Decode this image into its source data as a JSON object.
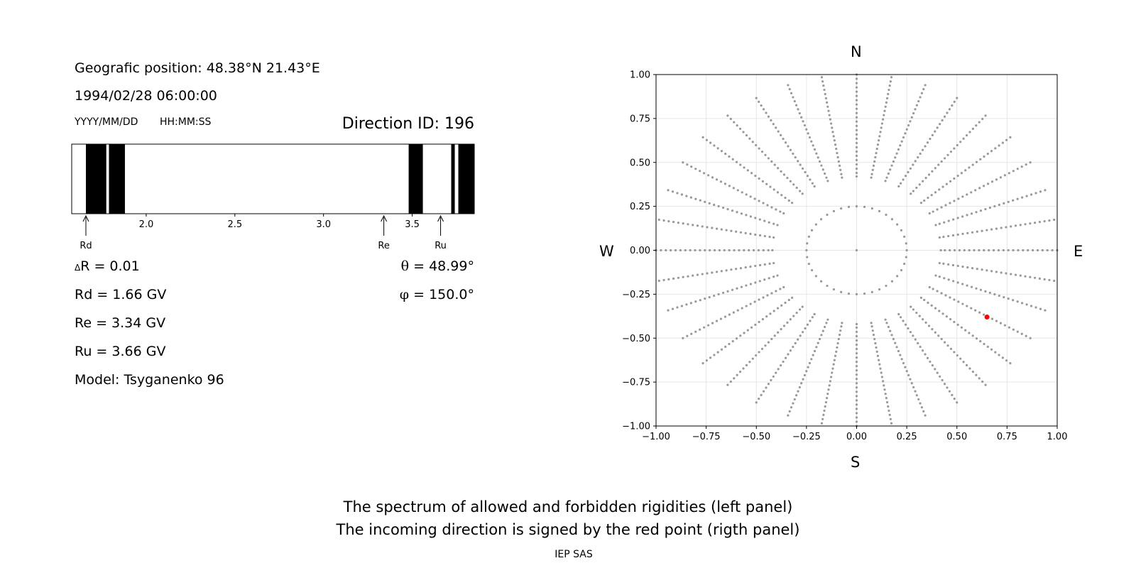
{
  "header": {
    "geo_position": "Geografic position: 48.38°N 21.43°E",
    "datetime": "1994/02/28 06:00:00",
    "date_format": "YYYY/MM/DD",
    "time_format": "HH:MM:SS",
    "direction_id": "Direction ID: 196"
  },
  "values": {
    "delta_r_symbol": "Δ",
    "delta_r": "R = 0.01",
    "rd": "Rd = 1.66 GV",
    "re": "Re = 3.34 GV",
    "ru": "Ru = 3.66 GV",
    "model": "Model: Tsyganenko 96",
    "theta_symbol": "θ",
    "theta": " = 48.99°",
    "phi_symbol": "φ",
    "phi": " = 150.0°"
  },
  "compass": {
    "n": "N",
    "s": "S",
    "w": "W",
    "e": "E"
  },
  "caption": {
    "line1": "The spectrum of allowed and forbidden rigidities (left panel)",
    "line2": "The incoming direction is signed by the red point (rigth panel)",
    "credit": "IEP SAS"
  },
  "chart_data": [
    {
      "type": "bar",
      "description": "rigidity spectrum",
      "xlim": [
        1.58,
        3.85
      ],
      "ticks": [
        2.0,
        2.5,
        3.0,
        3.5
      ],
      "tick_labels": [
        "2.0",
        "2.5",
        "3.0",
        "3.5"
      ],
      "forbidden_bands": [
        [
          1.66,
          1.775
        ],
        [
          1.79,
          1.88
        ],
        [
          3.48,
          3.56
        ],
        [
          3.72,
          3.74
        ],
        [
          3.76,
          3.85
        ]
      ],
      "markers": [
        {
          "label": "Rd",
          "x": 1.66
        },
        {
          "label": "Re",
          "x": 3.34
        },
        {
          "label": "Ru",
          "x": 3.66
        }
      ],
      "colors": {
        "forbidden": "#000000",
        "allowed": "#ffffff"
      }
    },
    {
      "type": "scatter",
      "description": "direction map",
      "xlim": [
        -1.0,
        1.0
      ],
      "ylim": [
        -1.0,
        1.0
      ],
      "xticks": [
        "−1.00",
        "−0.75",
        "−0.50",
        "−0.25",
        "0.00",
        "0.25",
        "0.50",
        "0.75",
        "1.00"
      ],
      "yticks": [
        "1.00",
        "0.75",
        "0.50",
        "0.25",
        "0.00",
        "−0.25",
        "−0.50",
        "−0.75",
        "−1.00"
      ],
      "grid": true,
      "grid_series": {
        "name": "",
        "color": "#999999",
        "center": [
          0,
          0
        ],
        "rings": [
          {
            "radius": 0.25,
            "points": 40
          },
          {
            "radius": 0.42,
            "points": 36
          }
        ],
        "rays": {
          "count": 36,
          "start_deg": 0,
          "step_deg": 10,
          "r_from": 0.44,
          "r_to": 1.0,
          "points_per_ray": 24
        }
      },
      "highlight": {
        "x": 0.65,
        "y": -0.38,
        "color": "#ff0000"
      }
    }
  ]
}
